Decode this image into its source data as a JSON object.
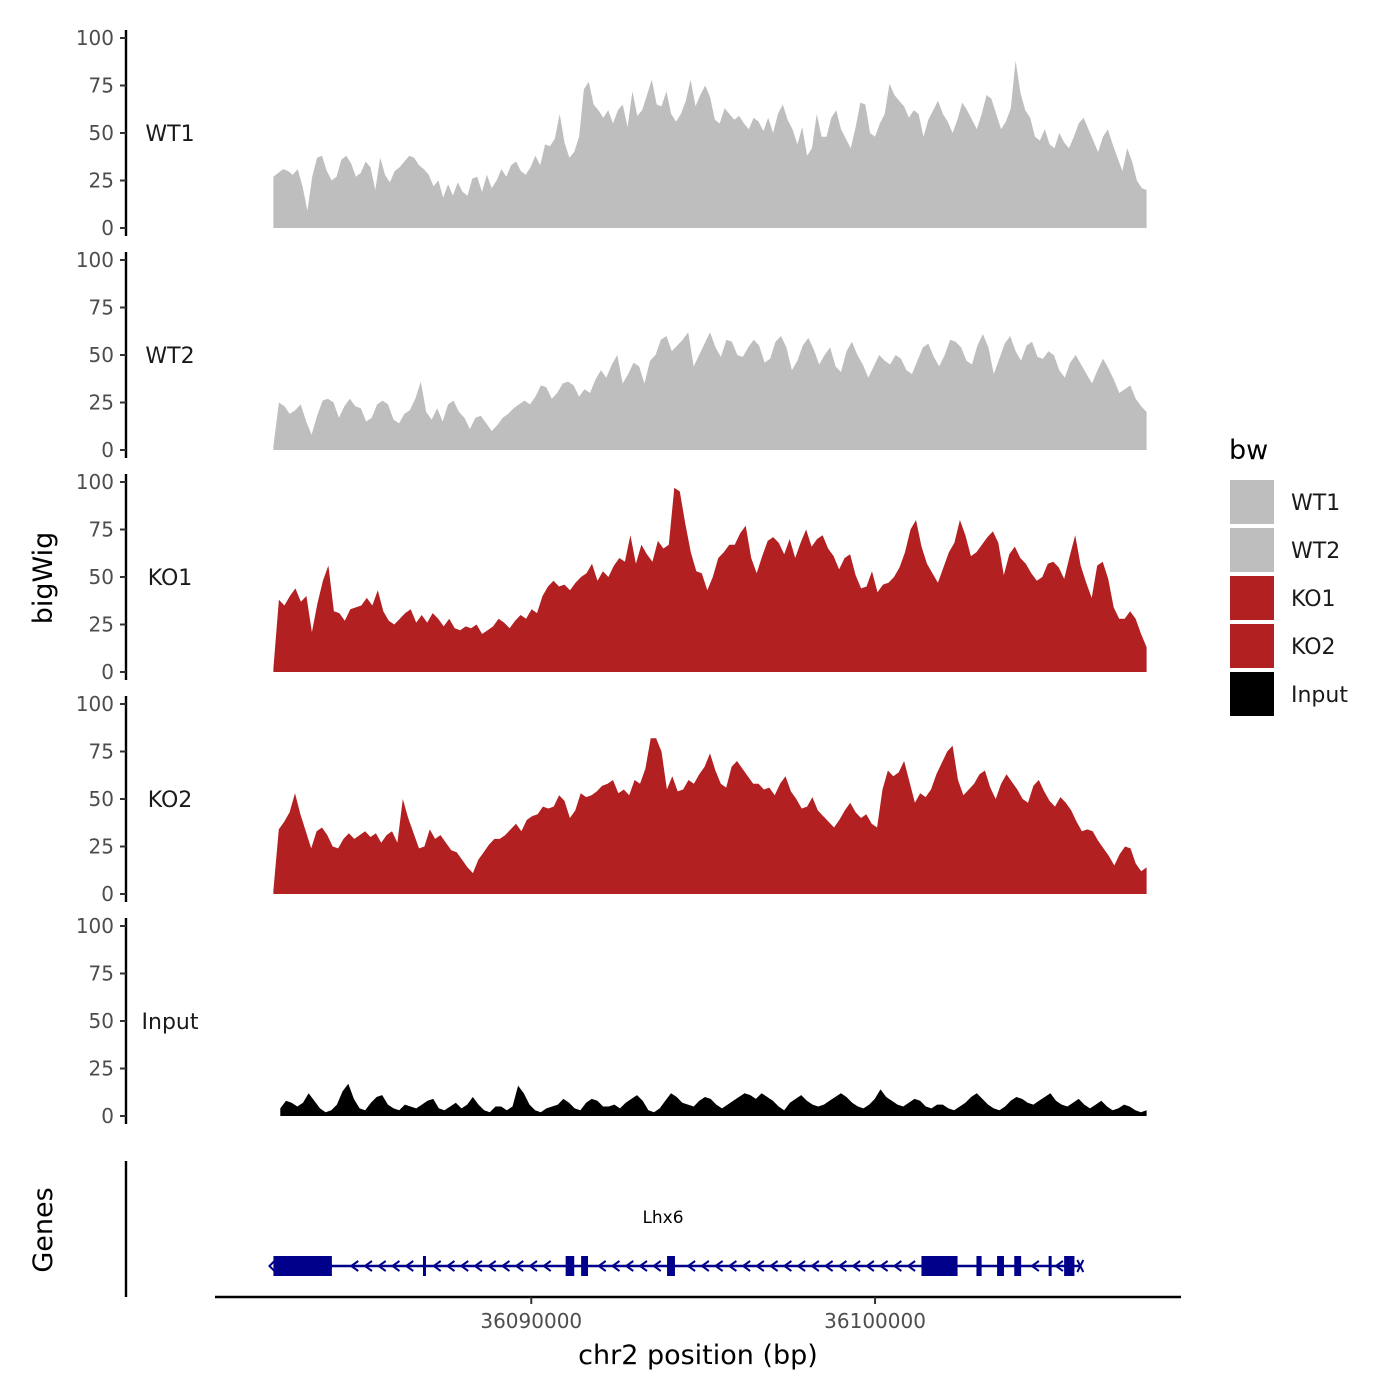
{
  "chart_data": {
    "type": "area",
    "ylabel": "bigWig",
    "xlabel": "chr2 position (bp)",
    "gene_track_label": "Genes",
    "y_ticks": [
      0,
      25,
      50,
      75,
      100
    ],
    "ylim": [
      0,
      100
    ],
    "x_ticks": [
      36090000,
      36100000
    ],
    "x_tick_labels": [
      "36090000",
      "36100000"
    ],
    "xlim": [
      36080800,
      36108900
    ],
    "region": [
      36082500,
      36107900
    ],
    "tracks": [
      {
        "name": "WT1",
        "color": "#bebebe",
        "start": 36082500,
        "end": 36107900,
        "values": [
          27,
          29,
          31,
          30,
          28,
          31,
          22,
          9,
          27,
          37,
          38,
          30,
          25,
          27,
          36,
          38,
          34,
          27,
          29,
          35,
          32,
          20,
          37,
          28,
          24,
          30,
          32,
          35,
          38,
          37,
          33,
          31,
          28,
          22,
          25,
          16,
          23,
          17,
          24,
          19,
          17,
          26,
          27,
          19,
          28,
          21,
          25,
          31,
          27,
          33,
          35,
          30,
          28,
          32,
          38,
          33,
          44,
          43,
          47,
          60,
          45,
          37,
          40,
          48,
          73,
          77,
          65,
          62,
          58,
          62,
          55,
          62,
          65,
          53,
          72,
          59,
          62,
          70,
          78,
          65,
          64,
          72,
          60,
          56,
          60,
          67,
          78,
          64,
          70,
          75,
          69,
          57,
          55,
          63,
          60,
          57,
          59,
          55,
          52,
          58,
          56,
          51,
          58,
          50,
          60,
          65,
          57,
          52,
          44,
          53,
          38,
          42,
          60,
          48,
          48,
          58,
          62,
          52,
          47,
          42,
          53,
          66,
          65,
          50,
          48,
          55,
          60,
          76,
          70,
          67,
          64,
          58,
          62,
          60,
          48,
          57,
          62,
          67,
          60,
          56,
          50,
          57,
          66,
          62,
          57,
          52,
          60,
          70,
          68,
          60,
          52,
          56,
          63,
          88,
          71,
          62,
          58,
          48,
          46,
          52,
          44,
          42,
          50,
          45,
          42,
          48,
          55,
          58,
          52,
          46,
          40,
          48,
          52,
          44,
          37,
          30,
          42,
          35,
          25,
          21,
          20
        ]
      },
      {
        "name": "WT2",
        "color": "#bebebe",
        "start": 36082500,
        "end": 36107900,
        "values": [
          2,
          25,
          23,
          19,
          21,
          24,
          15,
          8,
          18,
          26,
          27,
          25,
          17,
          23,
          27,
          23,
          22,
          15,
          17,
          24,
          26,
          24,
          16,
          14,
          19,
          21,
          27,
          36,
          20,
          16,
          22,
          15,
          24,
          26,
          20,
          17,
          11,
          17,
          18,
          14,
          10,
          13,
          17,
          19,
          22,
          24,
          26,
          24,
          28,
          34,
          33,
          27,
          30,
          35,
          36,
          34,
          28,
          32,
          30,
          37,
          42,
          38,
          45,
          50,
          35,
          40,
          46,
          44,
          35,
          47,
          50,
          58,
          60,
          52,
          55,
          58,
          62,
          44,
          50,
          56,
          62,
          54,
          49,
          58,
          57,
          50,
          49,
          54,
          58,
          55,
          46,
          48,
          57,
          60,
          54,
          42,
          47,
          55,
          59,
          53,
          45,
          50,
          54,
          44,
          41,
          52,
          57,
          50,
          45,
          38,
          44,
          50,
          47,
          45,
          50,
          48,
          42,
          40,
          47,
          54,
          56,
          49,
          44,
          50,
          58,
          57,
          54,
          47,
          45,
          55,
          61,
          54,
          40,
          48,
          56,
          60,
          52,
          47,
          55,
          57,
          49,
          48,
          52,
          50,
          42,
          38,
          46,
          50,
          45,
          40,
          35,
          42,
          48,
          43,
          37,
          30,
          32,
          34,
          27,
          23,
          20
        ]
      },
      {
        "name": "KO1",
        "color": "#b22022",
        "start": 36082500,
        "end": 36107900,
        "values": [
          2,
          38,
          35,
          40,
          44,
          37,
          40,
          21,
          36,
          48,
          56,
          32,
          31,
          27,
          33,
          34,
          35,
          39,
          35,
          43,
          32,
          27,
          25,
          28,
          31,
          33,
          26,
          30,
          26,
          31,
          28,
          24,
          28,
          23,
          22,
          24,
          23,
          25,
          20,
          22,
          24,
          28,
          26,
          23,
          27,
          30,
          28,
          33,
          31,
          40,
          45,
          48,
          45,
          46,
          43,
          47,
          50,
          52,
          57,
          48,
          53,
          50,
          56,
          60,
          58,
          72,
          57,
          67,
          62,
          58,
          69,
          65,
          67,
          97,
          95,
          78,
          63,
          53,
          52,
          43,
          50,
          60,
          63,
          67,
          67,
          73,
          77,
          60,
          52,
          61,
          69,
          71,
          68,
          62,
          70,
          60,
          68,
          75,
          66,
          70,
          72,
          65,
          61,
          54,
          60,
          62,
          51,
          44,
          45,
          53,
          42,
          46,
          47,
          50,
          55,
          63,
          75,
          80,
          66,
          57,
          52,
          47,
          55,
          63,
          68,
          80,
          72,
          61,
          63,
          67,
          71,
          74,
          68,
          51,
          62,
          66,
          60,
          57,
          52,
          48,
          50,
          57,
          58,
          55,
          49,
          61,
          72,
          56,
          47,
          39,
          56,
          58,
          49,
          34,
          28,
          28,
          32,
          28,
          20,
          13
        ]
      },
      {
        "name": "KO2",
        "color": "#b22022",
        "start": 36082500,
        "end": 36107900,
        "values": [
          2,
          34,
          38,
          43,
          53,
          42,
          33,
          24,
          33,
          35,
          31,
          25,
          24,
          29,
          32,
          29,
          31,
          33,
          30,
          32,
          27,
          31,
          33,
          27,
          50,
          40,
          32,
          24,
          25,
          34,
          29,
          31,
          27,
          23,
          22,
          18,
          14,
          11,
          18,
          22,
          26,
          29,
          29,
          31,
          34,
          37,
          33,
          39,
          41,
          42,
          46,
          45,
          46,
          52,
          49,
          40,
          44,
          53,
          51,
          52,
          54,
          57,
          58,
          60,
          53,
          55,
          52,
          60,
          58,
          66,
          82,
          82,
          75,
          55,
          62,
          54,
          55,
          60,
          58,
          63,
          67,
          74,
          65,
          58,
          56,
          67,
          70,
          66,
          62,
          58,
          58,
          55,
          56,
          52,
          58,
          62,
          54,
          50,
          45,
          46,
          51,
          44,
          41,
          38,
          35,
          39,
          44,
          48,
          43,
          40,
          42,
          37,
          35,
          55,
          65,
          62,
          64,
          70,
          59,
          48,
          53,
          51,
          55,
          63,
          69,
          75,
          78,
          60,
          52,
          55,
          58,
          63,
          65,
          56,
          50,
          58,
          63,
          59,
          55,
          50,
          48,
          57,
          60,
          54,
          49,
          46,
          51,
          48,
          44,
          38,
          33,
          34,
          33,
          28,
          24,
          20,
          15,
          21,
          25,
          24,
          16,
          12,
          14
        ]
      },
      {
        "name": "Input",
        "color": "#000000",
        "start": 36082700,
        "end": 36107900,
        "values": [
          4,
          8,
          7,
          5,
          7,
          12,
          8,
          4,
          2,
          3,
          6,
          13,
          17,
          9,
          4,
          3,
          7,
          10,
          11,
          6,
          4,
          3,
          6,
          5,
          4,
          6,
          8,
          9,
          4,
          3,
          5,
          7,
          4,
          6,
          10,
          6,
          3,
          2,
          5,
          5,
          3,
          5,
          16,
          12,
          6,
          3,
          2,
          4,
          5,
          6,
          9,
          7,
          4,
          3,
          7,
          9,
          8,
          5,
          5,
          6,
          4,
          7,
          9,
          11,
          8,
          3,
          2,
          4,
          8,
          12,
          10,
          7,
          6,
          5,
          8,
          10,
          9,
          6,
          4,
          6,
          8,
          10,
          12,
          11,
          9,
          12,
          10,
          8,
          5,
          3,
          7,
          9,
          11,
          8,
          6,
          5,
          6,
          8,
          10,
          12,
          10,
          7,
          5,
          4,
          6,
          9,
          14,
          10,
          8,
          6,
          5,
          7,
          9,
          8,
          5,
          4,
          6,
          6,
          4,
          3,
          5,
          7,
          10,
          12,
          9,
          6,
          4,
          3,
          5,
          8,
          10,
          9,
          7,
          6,
          8,
          10,
          12,
          8,
          6,
          5,
          7,
          9,
          6,
          4,
          6,
          8,
          5,
          3,
          4,
          6,
          5,
          3,
          2,
          3
        ]
      }
    ],
    "gene": {
      "name": "Lhx6",
      "color": "#00008b",
      "start": 36082500,
      "end": 36106000,
      "strand": "-",
      "exons": [
        [
          36082500,
          36084200
        ],
        [
          36086850,
          36086920
        ],
        [
          36091000,
          36091250
        ],
        [
          36091450,
          36091650
        ],
        [
          36093950,
          36094180
        ],
        [
          36101350,
          36102400
        ],
        [
          36102950,
          36103100
        ],
        [
          36103550,
          36103750
        ],
        [
          36104050,
          36104250
        ],
        [
          36105050,
          36105120
        ],
        [
          36105500,
          36105800
        ]
      ],
      "arrow_positions": [
        36084850,
        36085250,
        36085650,
        36086050,
        36086450,
        36087250,
        36087650,
        36088050,
        36088450,
        36088850,
        36089250,
        36089650,
        36090050,
        36090450,
        36092050,
        36092450,
        36092850,
        36093250,
        36093650,
        36094650,
        36095050,
        36095450,
        36095850,
        36096250,
        36096650,
        36097050,
        36097450,
        36097850,
        36098250,
        36098650,
        36099050,
        36099450,
        36099850,
        36100250,
        36100650,
        36101050,
        36104650,
        36105350
      ]
    },
    "legend": {
      "title": "bw",
      "placement": "right",
      "entries": [
        {
          "label": "WT1",
          "color": "#bebebe"
        },
        {
          "label": "WT2",
          "color": "#bebebe"
        },
        {
          "label": "KO1",
          "color": "#b22022"
        },
        {
          "label": "KO2",
          "color": "#b22022"
        },
        {
          "label": "Input",
          "color": "#000000"
        }
      ]
    }
  }
}
